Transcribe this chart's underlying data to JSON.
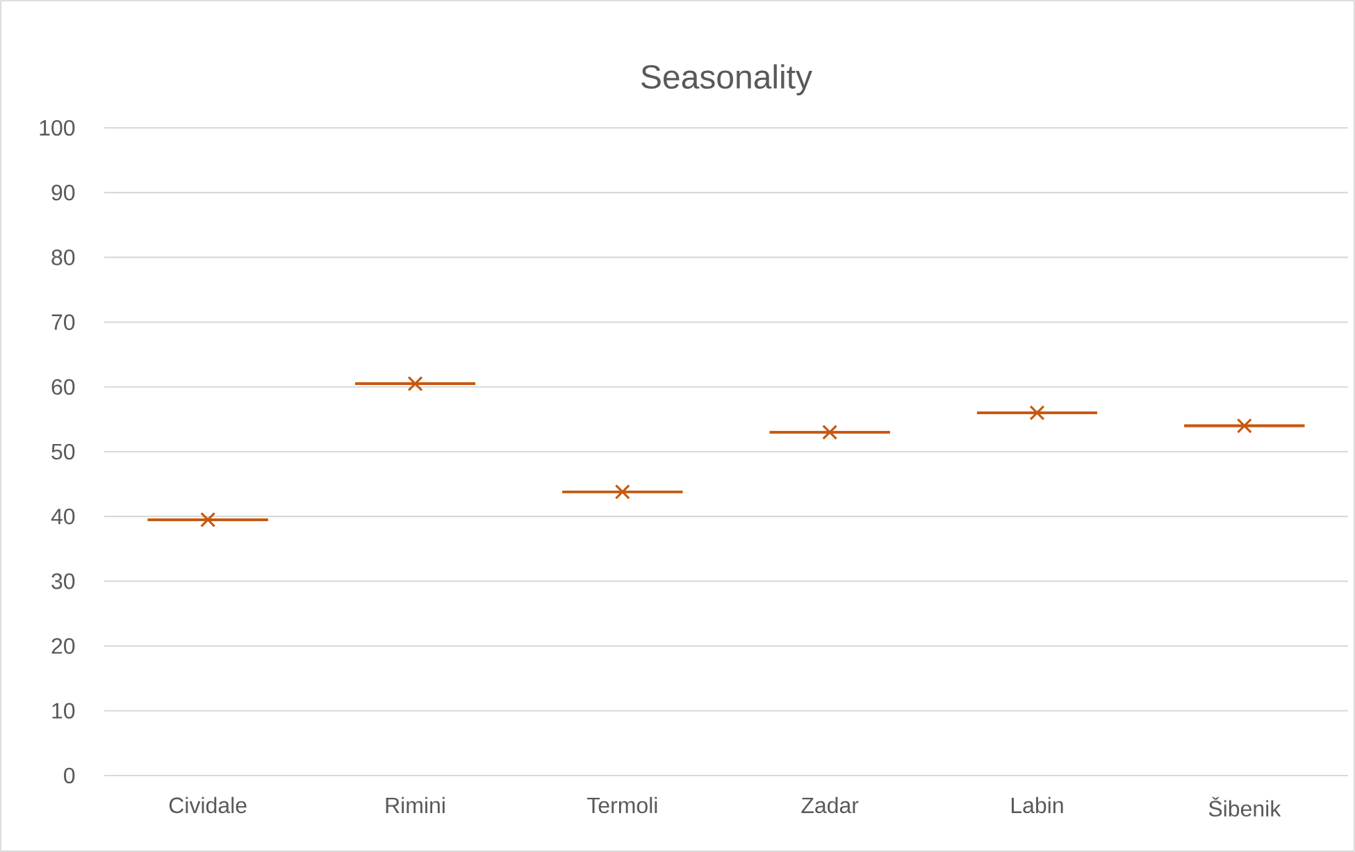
{
  "chart_data": {
    "type": "box",
    "title": "Seasonality",
    "categories": [
      "Cividale",
      "Rimini",
      "Termoli",
      "Zadar",
      "Labin",
      "Šibenik"
    ],
    "boxes": [
      {
        "low": 39.5,
        "q1": 39.5,
        "median": 39.5,
        "q3": 39.5,
        "high": 39.5,
        "mean": 39.5
      },
      {
        "low": 60.5,
        "q1": 60.5,
        "median": 60.5,
        "q3": 60.5,
        "high": 60.5,
        "mean": 60.5
      },
      {
        "low": 43.8,
        "q1": 43.8,
        "median": 43.8,
        "q3": 43.8,
        "high": 43.8,
        "mean": 43.8
      },
      {
        "low": 53,
        "q1": 53,
        "median": 53,
        "q3": 53,
        "high": 53,
        "mean": 53
      },
      {
        "low": 56,
        "q1": 56,
        "median": 56,
        "q3": 56,
        "high": 56,
        "mean": 56
      },
      {
        "low": 54,
        "q1": 54,
        "median": 54,
        "q3": 54,
        "high": 54,
        "mean": 54
      }
    ],
    "color": "#c65911",
    "marker": "cross",
    "grid": "y",
    "ylim": [
      0,
      100
    ],
    "yticks": [
      0,
      10,
      20,
      30,
      40,
      50,
      60,
      70,
      80,
      90,
      100
    ]
  }
}
